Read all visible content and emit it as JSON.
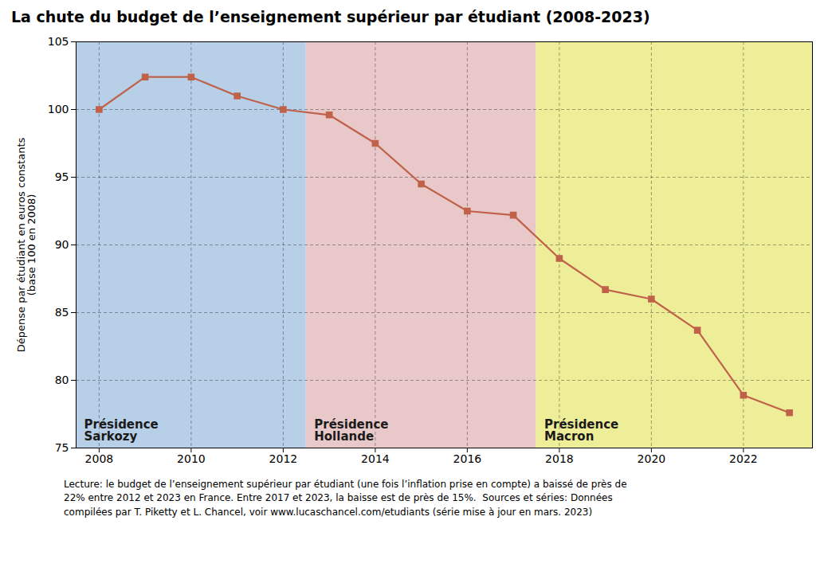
{
  "chart_data": {
    "type": "line",
    "title": "La chute du budget de l’enseignement supérieur par étudiant (2008-2023)",
    "ylabel": "Dépense par étudiant en euros constants\n(base 100 en 2008)",
    "x": [
      2008,
      2009,
      2010,
      2011,
      2012,
      2013,
      2014,
      2015,
      2016,
      2017,
      2018,
      2019,
      2020,
      2021,
      2022,
      2023
    ],
    "values": [
      100.0,
      102.4,
      102.4,
      101.0,
      100.0,
      99.6,
      97.5,
      94.5,
      92.5,
      92.2,
      89.0,
      86.7,
      86.0,
      83.7,
      78.9,
      77.6
    ],
    "color": "#c0614a",
    "marker": "square",
    "xlim": [
      2007.5,
      2023.5
    ],
    "ylim": [
      75,
      105
    ],
    "xticks": [
      2008,
      2010,
      2012,
      2014,
      2016,
      2018,
      2020,
      2022
    ],
    "yticks": [
      75,
      80,
      85,
      90,
      95,
      100,
      105
    ],
    "grid": true,
    "annotations": [
      {
        "text": "Présidence\nSarkozy",
        "xmin": 2007.5,
        "xmax": 2012.5,
        "color": "#b8cfe8"
      },
      {
        "text": "Présidence\nHollande",
        "xmin": 2012.5,
        "xmax": 2017.5,
        "color": "#e8c8c8"
      },
      {
        "text": "Présidence\nMacron",
        "xmin": 2017.5,
        "xmax": 2023.5,
        "color": "#eeee99"
      }
    ],
    "footnote": [
      "Lecture: le budget de l’enseignement supérieur par étudiant (une fois l’inflation prise en compte) a baissé de près de",
      "22% entre 2012 et 2023 en France. Entre 2017 et 2023, la baisse est de près de 15%.  Sources et séries: Données",
      "compilées par T. Piketty et L. Chancel, voir www.lucaschancel.com/etudiants (série mise à jour en mars. 2023)"
    ]
  }
}
